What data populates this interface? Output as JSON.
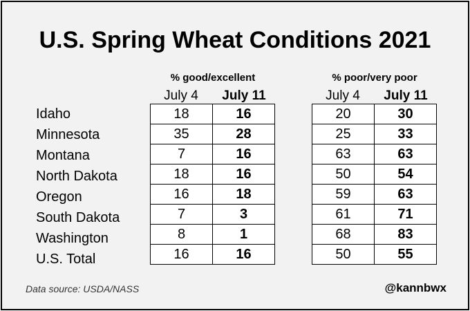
{
  "chart_data": {
    "type": "table",
    "title": "U.S. Spring Wheat Conditions 2021",
    "groups": [
      {
        "name": "% good/excellent",
        "columns": [
          "July 4",
          "July 11"
        ],
        "rows": [
          {
            "state": "Idaho",
            "values": [
              "18",
              "16"
            ]
          },
          {
            "state": "Minnesota",
            "values": [
              "35",
              "28"
            ]
          },
          {
            "state": "Montana",
            "values": [
              "7",
              "16"
            ]
          },
          {
            "state": "North Dakota",
            "values": [
              "18",
              "16"
            ]
          },
          {
            "state": "Oregon",
            "values": [
              "16",
              "18"
            ]
          },
          {
            "state": "South Dakota",
            "values": [
              "7",
              "3"
            ]
          },
          {
            "state": "Washington",
            "values": [
              "8",
              "1"
            ]
          },
          {
            "state": "U.S. Total",
            "values": [
              "16",
              "16"
            ]
          }
        ]
      },
      {
        "name": "% poor/very poor",
        "columns": [
          "July 4",
          "July 11"
        ],
        "rows": [
          {
            "state": "Idaho",
            "values": [
              "20",
              "30"
            ]
          },
          {
            "state": "Minnesota",
            "values": [
              "25",
              "33"
            ]
          },
          {
            "state": "Montana",
            "values": [
              "63",
              "63"
            ]
          },
          {
            "state": "North Dakota",
            "values": [
              "50",
              "54"
            ]
          },
          {
            "state": "Oregon",
            "values": [
              "59",
              "63"
            ]
          },
          {
            "state": "South Dakota",
            "values": [
              "61",
              "71"
            ]
          },
          {
            "state": "Washington",
            "values": [
              "68",
              "83"
            ]
          },
          {
            "state": "U.S. Total",
            "values": [
              "50",
              "55"
            ]
          }
        ]
      }
    ],
    "states": [
      "Idaho",
      "Minnesota",
      "Montana",
      "North Dakota",
      "Oregon",
      "South Dakota",
      "Washington",
      "U.S. Total"
    ]
  },
  "footer": {
    "source": "Data source: USDA/NASS",
    "handle": "@kannbwx"
  }
}
